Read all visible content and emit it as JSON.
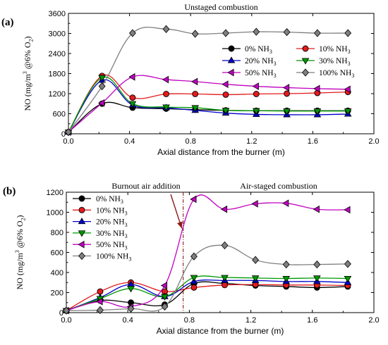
{
  "chart_data": [
    {
      "panel_label": "(a)",
      "type": "line",
      "title": "Unstaged combustion",
      "xlabel": "Axial distance from the burner (m)",
      "ylabel_parts": [
        "NO (mg/m",
        "3",
        " @6% O",
        "2",
        ")"
      ],
      "xlim": [
        0.0,
        2.0
      ],
      "ylim": [
        0,
        3600
      ],
      "xticks": [
        0.0,
        0.4,
        0.8,
        1.2,
        1.6,
        2.0
      ],
      "xtick_labels": [
        "0.0",
        "0.4",
        "0.8",
        "1.2",
        "1.6",
        "2.0"
      ],
      "yticks": [
        0,
        600,
        1200,
        1800,
        2400,
        3000,
        3600
      ],
      "ytick_labels": [
        "0",
        "600",
        "1200",
        "1800",
        "2400",
        "3000",
        "3600"
      ],
      "legend_placement": "right, two columns",
      "grid": false,
      "x": [
        0.0,
        0.22,
        0.42,
        0.64,
        0.83,
        1.03,
        1.23,
        1.43,
        1.63,
        1.83
      ],
      "series": [
        {
          "name_parts": [
            "0% NH",
            "3"
          ],
          "color": "#000000",
          "marker": "circle",
          "values": [
            50,
            900,
            780,
            750,
            720,
            700,
            690,
            690,
            690,
            690
          ]
        },
        {
          "name_parts": [
            "10% NH",
            "3"
          ],
          "color": "#e41a1c",
          "marker": "circle",
          "values": [
            50,
            1730,
            1080,
            1190,
            1190,
            1170,
            1190,
            1200,
            1220,
            1250
          ]
        },
        {
          "name_parts": [
            "20% NH",
            "3"
          ],
          "color": "#0000cc",
          "marker": "triangle-up",
          "values": [
            50,
            1600,
            860,
            780,
            700,
            620,
            580,
            570,
            570,
            590
          ]
        },
        {
          "name_parts": [
            "30% NH",
            "3"
          ],
          "color": "#009900",
          "marker": "triangle-down",
          "values": [
            50,
            1680,
            900,
            800,
            780,
            700,
            690,
            680,
            680,
            680
          ]
        },
        {
          "name_parts": [
            "50% NH",
            "3"
          ],
          "color": "#c000c0",
          "marker": "triangle-left",
          "values": [
            50,
            920,
            1700,
            1620,
            1560,
            1480,
            1420,
            1380,
            1350,
            1330
          ]
        },
        {
          "name_parts": [
            "100% NH",
            "3"
          ],
          "color": "#7f7f7f",
          "marker": "diamond",
          "values": [
            50,
            1420,
            3010,
            3130,
            2990,
            3010,
            3050,
            3040,
            3010,
            3010
          ]
        }
      ]
    },
    {
      "panel_label": "(b)",
      "type": "line",
      "title_left": "Burnout air addition",
      "title_right": "Air-staged combustion",
      "xlabel": "Axial distance from the burner (m)",
      "ylabel_parts": [
        "NO (mg/m",
        "3",
        " @6% O",
        "2",
        ")"
      ],
      "xlim": [
        0.0,
        2.0
      ],
      "ylim": [
        0,
        1200
      ],
      "xticks": [
        0.0,
        0.4,
        0.8,
        1.2,
        1.6,
        2.0
      ],
      "xtick_labels": [
        "0.0",
        "0.4",
        "0.8",
        "1.2",
        "1.6",
        "2.0"
      ],
      "yticks": [
        0,
        200,
        400,
        600,
        800,
        1000,
        1200
      ],
      "ytick_labels": [
        "0",
        "200",
        "400",
        "600",
        "800",
        "1000",
        "1200"
      ],
      "legend_placement": "upper-left",
      "grid": false,
      "burnout_air_x": 0.76,
      "x": [
        0.0,
        0.22,
        0.42,
        0.64,
        0.83,
        1.03,
        1.23,
        1.43,
        1.63,
        1.83
      ],
      "series": [
        {
          "name_parts": [
            "0% NH",
            "3"
          ],
          "color": "#000000",
          "marker": "circle",
          "values": [
            20,
            120,
            100,
            80,
            290,
            290,
            270,
            260,
            250,
            260
          ]
        },
        {
          "name_parts": [
            "10% NH",
            "3"
          ],
          "color": "#e41a1c",
          "marker": "circle",
          "values": [
            20,
            210,
            300,
            210,
            250,
            275,
            280,
            275,
            275,
            270
          ]
        },
        {
          "name_parts": [
            "20% NH",
            "3"
          ],
          "color": "#0000cc",
          "marker": "triangle-up",
          "values": [
            20,
            150,
            280,
            160,
            310,
            320,
            320,
            310,
            310,
            300
          ]
        },
        {
          "name_parts": [
            "30% NH",
            "3"
          ],
          "color": "#009900",
          "marker": "triangle-down",
          "values": [
            20,
            140,
            240,
            160,
            350,
            350,
            345,
            340,
            345,
            340
          ]
        },
        {
          "name_parts": [
            "50% NH",
            "3"
          ],
          "color": "#c000c0",
          "marker": "triangle-left",
          "values": [
            20,
            110,
            60,
            270,
            1130,
            1030,
            1085,
            1090,
            1030,
            1025
          ]
        },
        {
          "name_parts": [
            "100% NH",
            "3"
          ],
          "color": "#7f7f7f",
          "marker": "diamond",
          "values": [
            20,
            25,
            40,
            60,
            560,
            670,
            525,
            480,
            480,
            485
          ]
        }
      ]
    }
  ]
}
